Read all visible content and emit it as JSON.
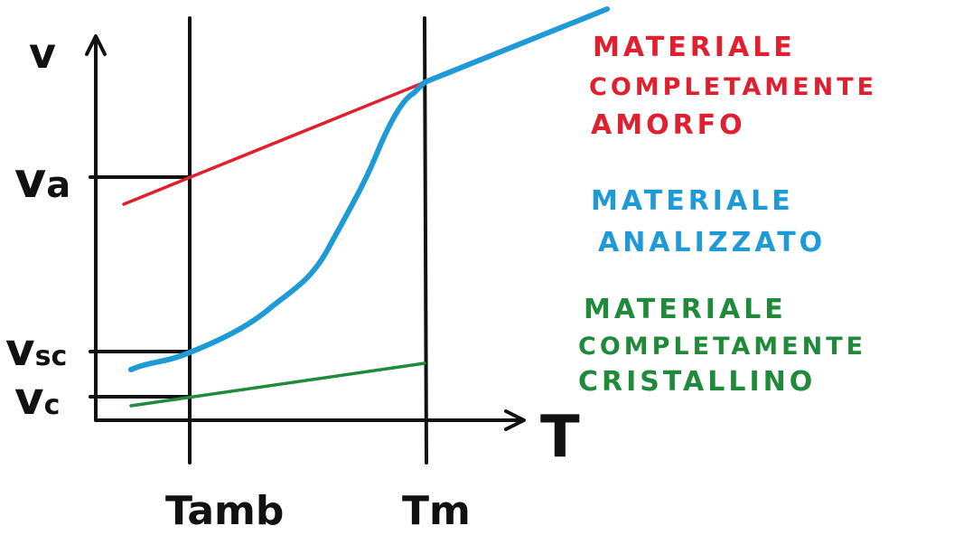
{
  "axes": {
    "y_label": "v",
    "x_label": "T"
  },
  "y_ticks": {
    "va": "v",
    "va_sub": "a",
    "vsc": "v",
    "vsc_sub": "sc",
    "vc": "v",
    "vc_sub": "c"
  },
  "x_ticks": {
    "tamb": "Tamb",
    "tm": "Tm"
  },
  "legend": {
    "amorphous": [
      "MATERIALE",
      "COMPLETAMENTE",
      "AMORFO"
    ],
    "analyzed": [
      "MATERIALE",
      "ANALIZZATO"
    ],
    "crystalline": [
      "MATERIALE",
      "COMPLETAMENTE",
      "CRISTALLINO"
    ]
  },
  "colors": {
    "amorphous": "#e0202e",
    "analyzed": "#1e9ad6",
    "crystalline": "#1e8a3a",
    "ink": "#111111"
  }
}
